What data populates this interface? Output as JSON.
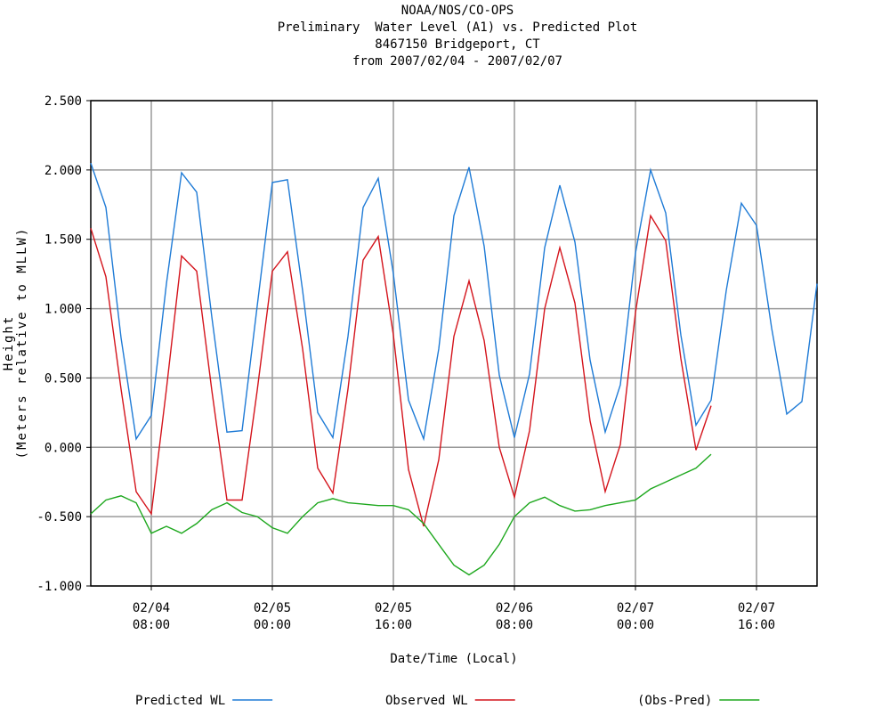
{
  "chart_data": {
    "type": "line",
    "title": [
      "NOAA/NOS/CO-OPS",
      "Preliminary  Water Level (A1) vs. Predicted Plot",
      "8467150 Bridgeport, CT",
      "from 2007/02/04 - 2007/02/07"
    ],
    "y_label": [
      "Height",
      "(Meters relative to MLLW)"
    ],
    "x_label": "Date/Time (Local)",
    "x": [
      "2007-02-04T00:00",
      "2007-02-04T02:00",
      "2007-02-04T04:00",
      "2007-02-04T06:00",
      "2007-02-04T08:00",
      "2007-02-04T10:00",
      "2007-02-04T12:00",
      "2007-02-04T14:00",
      "2007-02-04T16:00",
      "2007-02-04T18:00",
      "2007-02-04T20:00",
      "2007-02-04T22:00",
      "2007-02-05T00:00",
      "2007-02-05T02:00",
      "2007-02-05T04:00",
      "2007-02-05T06:00",
      "2007-02-05T08:00",
      "2007-02-05T10:00",
      "2007-02-05T12:00",
      "2007-02-05T14:00",
      "2007-02-05T16:00",
      "2007-02-05T18:00",
      "2007-02-05T20:00",
      "2007-02-05T22:00",
      "2007-02-06T00:00",
      "2007-02-06T02:00",
      "2007-02-06T04:00",
      "2007-02-06T06:00",
      "2007-02-06T08:00",
      "2007-02-06T10:00",
      "2007-02-06T12:00",
      "2007-02-06T14:00",
      "2007-02-06T16:00",
      "2007-02-06T18:00",
      "2007-02-06T20:00",
      "2007-02-06T22:00",
      "2007-02-07T00:00",
      "2007-02-07T02:00",
      "2007-02-07T04:00",
      "2007-02-07T06:00",
      "2007-02-07T08:00",
      "2007-02-07T10:00",
      "2007-02-07T12:00",
      "2007-02-07T14:00",
      "2007-02-07T16:00",
      "2007-02-07T18:00",
      "2007-02-07T20:00",
      "2007-02-07T22:00",
      "2007-02-08T00:00"
    ],
    "xlim": [
      "2007-02-04T00:00",
      "2007-02-08T00:00"
    ],
    "xticks": [
      {
        "value": "2007-02-04T08:00",
        "label": "02/04 08:00"
      },
      {
        "value": "2007-02-05T00:00",
        "label": "02/05 00:00"
      },
      {
        "value": "2007-02-05T16:00",
        "label": "02/05 16:00"
      },
      {
        "value": "2007-02-06T08:00",
        "label": "02/06 08:00"
      },
      {
        "value": "2007-02-07T00:00",
        "label": "02/07 00:00"
      },
      {
        "value": "2007-02-07T16:00",
        "label": "02/07 16:00"
      }
    ],
    "ylim": [
      -1,
      2.5
    ],
    "yticks": [
      {
        "value": -1,
        "label": "-1.000"
      },
      {
        "value": -0.5,
        "label": "-0.500"
      },
      {
        "value": 0,
        "label": "0.000"
      },
      {
        "value": 0.5,
        "label": "0.500"
      },
      {
        "value": 1,
        "label": "1.000"
      },
      {
        "value": 1.5,
        "label": "1.500"
      },
      {
        "value": 2,
        "label": "2.000"
      },
      {
        "value": 2.5,
        "label": "2.500"
      }
    ],
    "grid": true,
    "legend": "bottom",
    "series": [
      {
        "name": "Predicted WL",
        "color": "#1f7bd6",
        "values": [
          2.05,
          1.73,
          0.79,
          0.06,
          0.23,
          1.18,
          1.98,
          1.84,
          0.94,
          0.11,
          0.12,
          1.02,
          1.91,
          1.93,
          1.13,
          0.25,
          0.07,
          0.8,
          1.73,
          1.94,
          1.25,
          0.34,
          0.06,
          0.71,
          1.67,
          2.02,
          1.45,
          0.52,
          0.07,
          0.53,
          1.44,
          1.89,
          1.48,
          0.63,
          0.11,
          0.45,
          1.4,
          2.0,
          1.69,
          0.81,
          0.16,
          0.34,
          1.13,
          1.76,
          1.6,
          0.86,
          0.24,
          0.33,
          1.18
        ]
      },
      {
        "name": "Observed WL",
        "color": "#d4141c",
        "values": [
          1.58,
          1.23,
          0.42,
          -0.32,
          -0.48,
          0.42,
          1.38,
          1.27,
          0.41,
          -0.38,
          -0.38,
          0.41,
          1.27,
          1.41,
          0.71,
          -0.15,
          -0.33,
          0.42,
          1.35,
          1.52,
          0.81,
          -0.16,
          -0.57,
          -0.09,
          0.8,
          1.2,
          0.77,
          0.0,
          -0.36,
          0.12,
          1.0,
          1.44,
          1.04,
          0.19,
          -0.32,
          0.02,
          0.97,
          1.67,
          1.49,
          0.64,
          -0.02,
          0.3,
          null,
          null,
          null,
          null,
          null,
          null,
          null
        ]
      },
      {
        "name": "(Obs-Pred)",
        "color": "#1ea81e",
        "values": [
          -0.48,
          -0.38,
          -0.35,
          -0.4,
          -0.62,
          -0.57,
          -0.62,
          -0.55,
          -0.45,
          -0.4,
          -0.47,
          -0.5,
          -0.58,
          -0.62,
          -0.5,
          -0.4,
          -0.37,
          -0.4,
          -0.41,
          -0.42,
          -0.42,
          -0.45,
          -0.55,
          -0.7,
          -0.85,
          -0.92,
          -0.85,
          -0.7,
          -0.5,
          -0.4,
          -0.36,
          -0.42,
          -0.46,
          -0.45,
          -0.42,
          -0.4,
          -0.38,
          -0.3,
          -0.25,
          -0.2,
          -0.15,
          -0.05,
          null,
          null,
          null,
          null,
          null,
          null,
          null
        ]
      }
    ]
  }
}
